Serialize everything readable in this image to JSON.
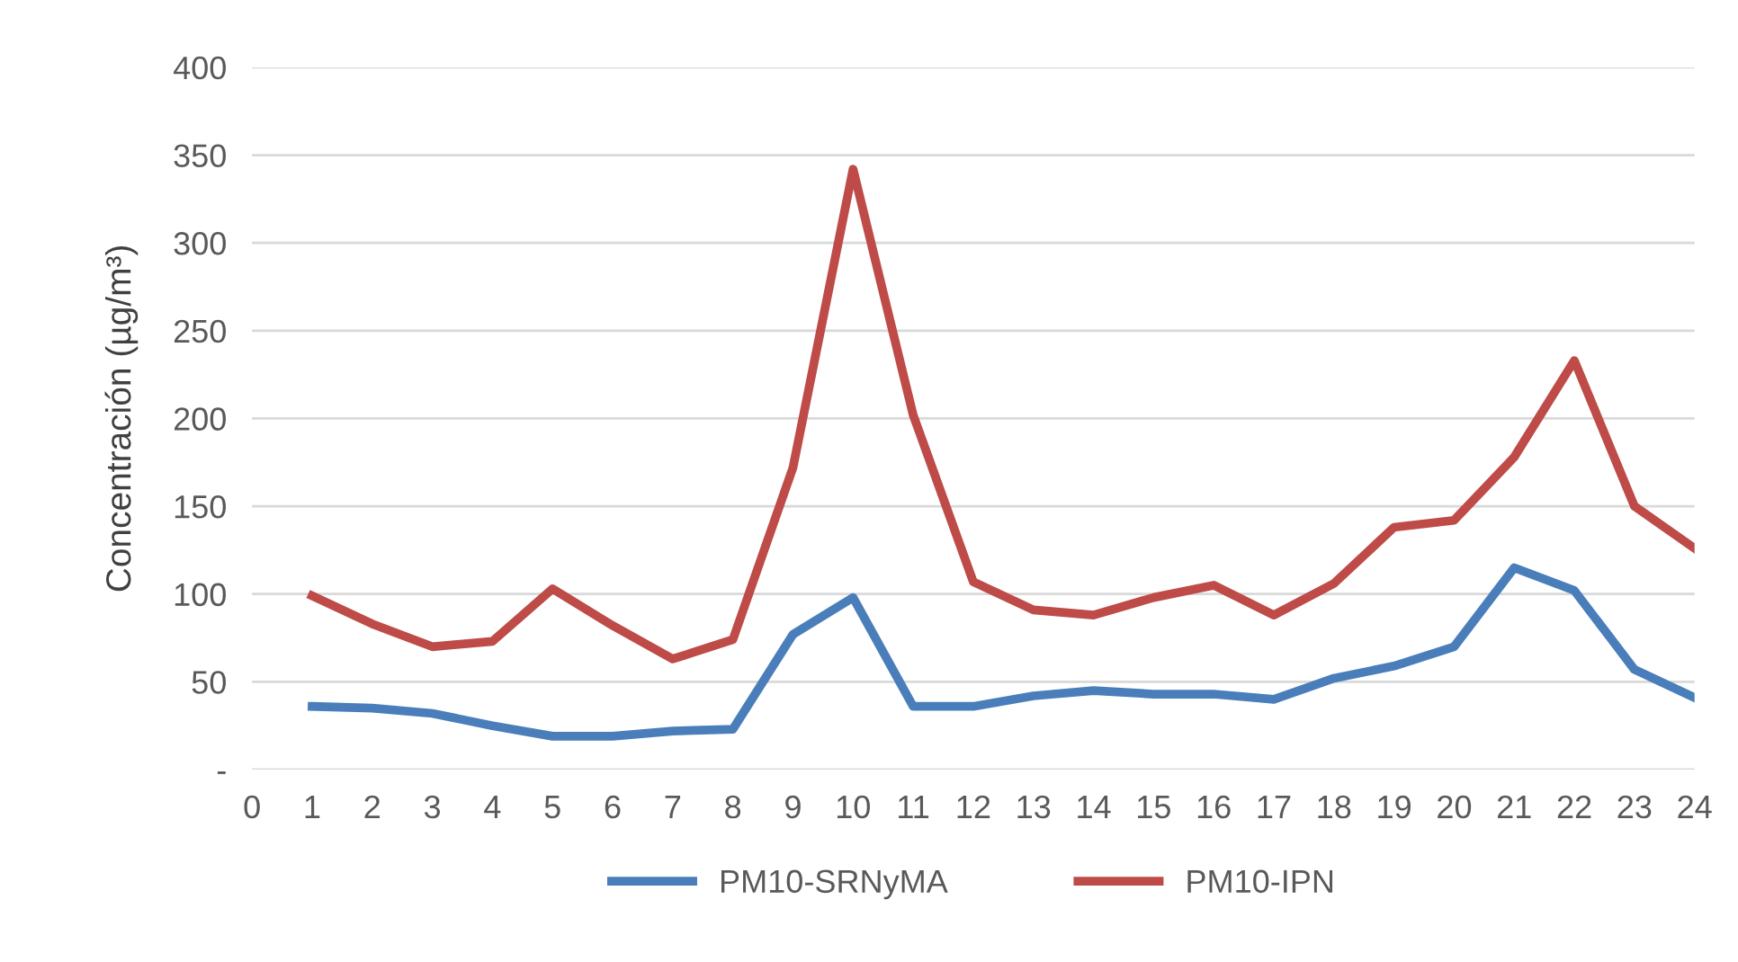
{
  "chart_data": {
    "type": "line",
    "ylabel": "Concentración (µg/m³)",
    "x": [
      1,
      2,
      3,
      4,
      5,
      6,
      7,
      8,
      9,
      10,
      11,
      12,
      13,
      14,
      15,
      16,
      17,
      18,
      19,
      20,
      21,
      22,
      23,
      24
    ],
    "series": [
      {
        "name": "PM10-SRNyMA",
        "color": "#4a7ebb",
        "values": [
          36,
          35,
          32,
          25,
          19,
          19,
          22,
          23,
          77,
          98,
          36,
          36,
          42,
          45,
          43,
          43,
          40,
          52,
          59,
          70,
          115,
          102,
          57,
          41
        ]
      },
      {
        "name": "PM10-IPN",
        "color": "#be4b48",
        "values": [
          99,
          83,
          70,
          73,
          103,
          82,
          63,
          74,
          172,
          342,
          202,
          107,
          91,
          88,
          98,
          105,
          88,
          106,
          138,
          142,
          178,
          233,
          150,
          126
        ]
      }
    ],
    "xlim": [
      0,
      24
    ],
    "xticks": [
      0,
      1,
      2,
      3,
      4,
      5,
      6,
      7,
      8,
      9,
      10,
      11,
      12,
      13,
      14,
      15,
      16,
      17,
      18,
      19,
      20,
      21,
      22,
      23,
      24
    ],
    "ylim": [
      0,
      400
    ],
    "yticks": [
      {
        "value": 0,
        "label": "-"
      },
      50,
      100,
      150,
      200,
      250,
      300,
      350,
      400
    ],
    "grid": "y",
    "legend": "bottom",
    "marker": "none",
    "line_style": "solid"
  }
}
